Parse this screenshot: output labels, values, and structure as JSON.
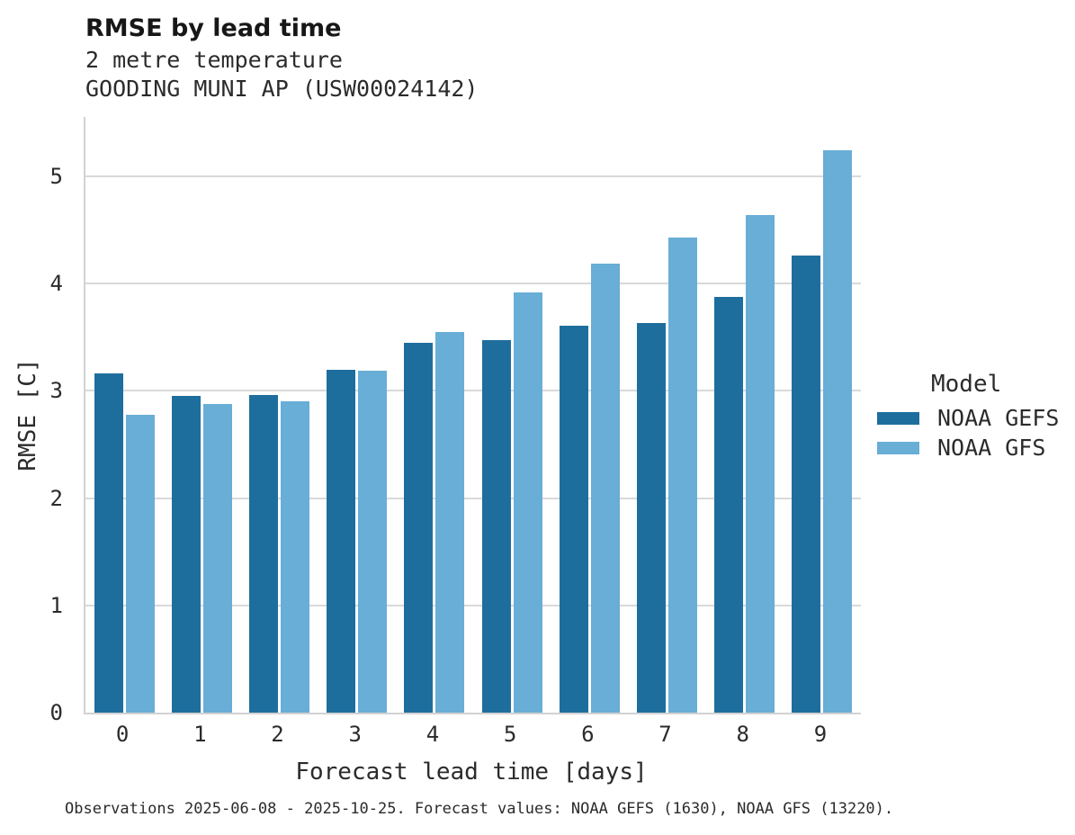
{
  "chart_data": {
    "type": "bar",
    "title": "RMSE by lead time",
    "subtitle": [
      "2 metre temperature",
      "GOODING MUNI AP (USW00024142)"
    ],
    "xlabel": "Forecast lead time [days]",
    "ylabel": "RMSE [C]",
    "categories": [
      "0",
      "1",
      "2",
      "3",
      "4",
      "5",
      "6",
      "7",
      "8",
      "9"
    ],
    "series": [
      {
        "name": "NOAA GEFS",
        "color": "#1e6e9d",
        "values": [
          3.16,
          2.95,
          2.96,
          3.2,
          3.45,
          3.47,
          3.61,
          3.63,
          3.88,
          4.26
        ]
      },
      {
        "name": "NOAA GFS",
        "color": "#68aed6",
        "values": [
          2.78,
          2.88,
          2.9,
          3.19,
          3.55,
          3.92,
          4.19,
          4.43,
          4.64,
          5.24
        ]
      }
    ],
    "ylim": [
      0,
      5.55
    ],
    "yticks": [
      0,
      1,
      2,
      3,
      4,
      5
    ],
    "grid": "horizontal",
    "grid_color": "#d9d9d9",
    "axis_color": "#d2d2d2",
    "legend_title": "Model",
    "legend_position": "right",
    "caption": "Observations 2025-06-08 - 2025-10-25. Forecast values: NOAA GEFS (1630), NOAA GFS (13220)."
  }
}
